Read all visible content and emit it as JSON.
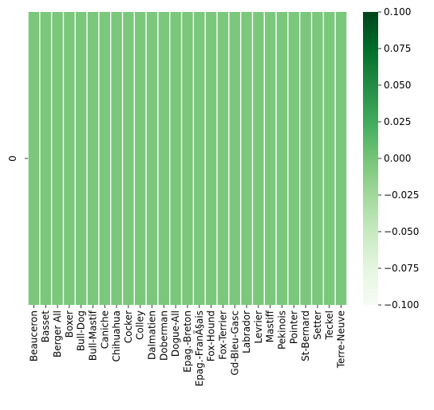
{
  "chart_data": {
    "type": "heatmap",
    "title": "",
    "xlabel": "",
    "ylabel": "",
    "categories": [
      "Beauceron",
      "Basset",
      "Berger All",
      "Boxer",
      "Bull-Dog",
      "Bull-Mastif",
      "Caniche",
      "Chihuahua",
      "Cocker",
      "Colley",
      "Dalmatien",
      "Doberman",
      "Dogue-All",
      "Epag.-Breton",
      "Epag.-FranÃ§ais",
      "Fox-Hound",
      "Fox-Terrier",
      "Gd-Bleu-Gasc",
      "Labrador",
      "Levrier",
      "Mastiff",
      "Pekinois",
      "Pointer",
      "St-Bernard",
      "Setter",
      "Teckel",
      "Terre-Neuve"
    ],
    "rows": [
      "0"
    ],
    "values": [
      [
        0,
        0,
        0,
        0,
        0,
        0,
        0,
        0,
        0,
        0,
        0,
        0,
        0,
        0,
        0,
        0,
        0,
        0,
        0,
        0,
        0,
        0,
        0,
        0,
        0,
        0,
        0
      ]
    ],
    "colorbar": {
      "cmap": "Greens",
      "vmin": -0.1,
      "vmax": 0.1,
      "ticks": [
        "0.100",
        "0.075",
        "0.050",
        "0.025",
        "0.000",
        "−0.025",
        "−0.050",
        "−0.075",
        "−0.100"
      ],
      "color_low": "#f7fcf5",
      "color_mid": "#74c476",
      "color_high": "#00441b"
    },
    "cell_color": "#7bc77c",
    "cell_gap_color": "#ffffff"
  }
}
